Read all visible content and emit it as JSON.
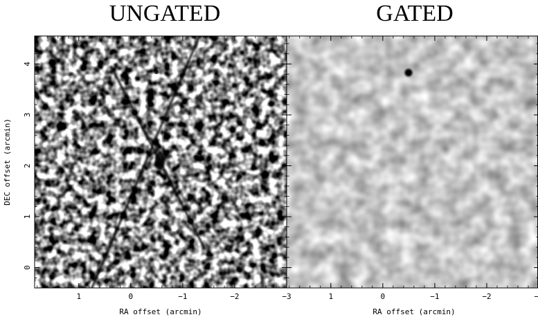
{
  "figure": {
    "panels": [
      {
        "title": "UNGATED",
        "xlabel": "RA offset (arcmin)",
        "ylabel": "DEC offset (arcmin)",
        "xticks": [
          "1",
          "0",
          "−1",
          "−2",
          "−3"
        ],
        "yticks": [
          "0",
          "1",
          "2",
          "3",
          "4"
        ]
      },
      {
        "title": "GATED",
        "xlabel": "RA offset (arcmin)",
        "xticks": [
          "1",
          "0",
          "−1",
          "−2",
          "−3"
        ]
      }
    ]
  },
  "chart_data": [
    {
      "type": "heatmap",
      "title": "UNGATED",
      "xlabel": "RA offset (arcmin)",
      "ylabel": "DEC offset (arcmin)",
      "xlim": [
        1.85,
        -3.0
      ],
      "ylim": [
        -0.4,
        4.55
      ],
      "xticks": [
        1,
        0,
        -1,
        -2,
        -3
      ],
      "yticks": [
        0,
        1,
        2,
        3,
        4
      ],
      "colormap": "grayscale",
      "features": [
        {
          "kind": "source",
          "ra": -0.6,
          "dec": 2.1
        },
        {
          "kind": "source",
          "ra": 0.2,
          "dec": 3.9
        }
      ]
    },
    {
      "type": "heatmap",
      "title": "GATED",
      "xlabel": "RA offset (arcmin)",
      "xlim": [
        1.85,
        -3.0
      ],
      "ylim": [
        -0.4,
        4.55
      ],
      "xticks": [
        1,
        0,
        -1,
        -2,
        -3
      ],
      "colormap": "grayscale",
      "features": [
        {
          "kind": "source",
          "ra": -0.55,
          "dec": 3.85
        }
      ]
    }
  ]
}
